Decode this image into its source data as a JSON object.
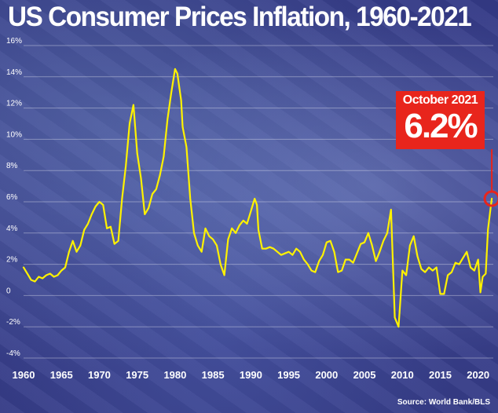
{
  "chart_data": {
    "type": "line",
    "title": "US Consumer Prices Inflation, 1960-2021",
    "xlabel": "",
    "ylabel": "",
    "xlim": [
      1960,
      2022
    ],
    "ylim": [
      -4,
      16
    ],
    "y_ticks": [
      "16%",
      "14%",
      "12%",
      "10%",
      "8%",
      "6%",
      "4%",
      "2%",
      "0",
      "-2%",
      "-4%"
    ],
    "y_tick_values": [
      16,
      14,
      12,
      10,
      8,
      6,
      4,
      2,
      0,
      -2,
      -4
    ],
    "x_ticks": [
      "1960",
      "1965",
      "1970",
      "1975",
      "1980",
      "1985",
      "1990",
      "1995",
      "2000",
      "2005",
      "2010",
      "2015",
      "2020"
    ],
    "x_tick_values": [
      1960,
      1965,
      1970,
      1975,
      1980,
      1985,
      1990,
      1995,
      2000,
      2005,
      2010,
      2015,
      2020
    ],
    "grid": true,
    "series": [
      {
        "name": "",
        "color": "#fff200",
        "x": [
          1960.0,
          1960.5,
          1961.0,
          1961.5,
          1962.0,
          1962.5,
          1963.0,
          1963.5,
          1964.0,
          1964.5,
          1965.0,
          1965.5,
          1966.0,
          1966.5,
          1967.0,
          1967.5,
          1968.0,
          1968.5,
          1969.0,
          1969.5,
          1970.0,
          1970.5,
          1971.0,
          1971.5,
          1972.0,
          1972.5,
          1973.0,
          1973.5,
          1974.0,
          1974.5,
          1975.0,
          1975.5,
          1976.0,
          1976.5,
          1977.0,
          1977.5,
          1978.0,
          1978.5,
          1979.0,
          1979.5,
          1980.0,
          1980.3,
          1980.8,
          1981.0,
          1981.5,
          1982.0,
          1982.5,
          1983.0,
          1983.5,
          1984.0,
          1984.5,
          1985.0,
          1985.5,
          1986.0,
          1986.5,
          1987.0,
          1987.5,
          1988.0,
          1988.5,
          1989.0,
          1989.5,
          1990.0,
          1990.5,
          1990.8,
          1991.0,
          1991.5,
          1992.0,
          1992.5,
          1993.0,
          1993.5,
          1994.0,
          1994.5,
          1995.0,
          1995.5,
          1996.0,
          1996.5,
          1997.0,
          1997.5,
          1998.0,
          1998.5,
          1999.0,
          1999.5,
          2000.0,
          2000.5,
          2001.0,
          2001.5,
          2002.0,
          2002.5,
          2003.0,
          2003.5,
          2004.0,
          2004.5,
          2005.0,
          2005.5,
          2006.0,
          2006.5,
          2007.0,
          2007.5,
          2008.0,
          2008.5,
          2009.0,
          2009.5,
          2010.0,
          2010.5,
          2011.0,
          2011.5,
          2012.0,
          2012.5,
          2013.0,
          2013.5,
          2014.0,
          2014.5,
          2015.0,
          2015.5,
          2016.0,
          2016.5,
          2017.0,
          2017.5,
          2018.0,
          2018.5,
          2019.0,
          2019.5,
          2020.0,
          2020.3,
          2020.6,
          2021.0,
          2021.3,
          2021.6,
          2021.8
        ],
        "y": [
          1.8,
          1.4,
          1.0,
          0.9,
          1.2,
          1.1,
          1.3,
          1.4,
          1.2,
          1.3,
          1.6,
          1.8,
          2.8,
          3.5,
          2.8,
          3.2,
          4.2,
          4.6,
          5.2,
          5.7,
          6.0,
          5.8,
          4.3,
          4.4,
          3.3,
          3.5,
          6.2,
          8.3,
          11.0,
          12.2,
          9.1,
          7.5,
          5.2,
          5.6,
          6.5,
          6.8,
          7.7,
          8.9,
          11.3,
          13.0,
          14.5,
          14.2,
          12.5,
          10.8,
          9.5,
          6.2,
          4.0,
          3.2,
          2.8,
          4.3,
          3.8,
          3.6,
          3.2,
          2.0,
          1.3,
          3.6,
          4.3,
          4.0,
          4.5,
          4.8,
          4.6,
          5.4,
          6.2,
          5.8,
          4.2,
          3.0,
          3.0,
          3.1,
          3.0,
          2.8,
          2.6,
          2.7,
          2.8,
          2.6,
          3.0,
          2.8,
          2.3,
          2.0,
          1.6,
          1.5,
          2.2,
          2.6,
          3.4,
          3.5,
          2.8,
          1.5,
          1.6,
          2.3,
          2.3,
          2.1,
          2.7,
          3.3,
          3.4,
          4.0,
          3.2,
          2.2,
          2.8,
          3.5,
          4.0,
          5.5,
          -1.4,
          -2.0,
          1.6,
          1.3,
          3.2,
          3.8,
          2.5,
          1.7,
          1.5,
          1.8,
          1.6,
          1.8,
          0.1,
          0.1,
          1.3,
          1.5,
          2.1,
          2.0,
          2.4,
          2.8,
          1.8,
          1.6,
          2.3,
          0.2,
          1.2,
          1.4,
          4.2,
          5.4,
          6.2
        ]
      }
    ],
    "annotation": {
      "label": "October 2021",
      "value": "6.2%",
      "x": 2021.8,
      "y": 6.2
    },
    "source": "Source: World Bank/BLS"
  }
}
